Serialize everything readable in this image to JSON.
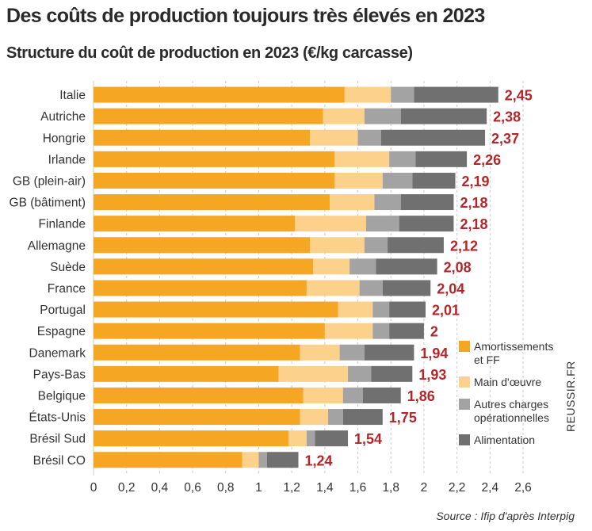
{
  "chart_data": {
    "type": "bar",
    "orientation": "horizontal",
    "stacked": true,
    "title": "Des coûts de production toujours très élevés en 2023",
    "subtitle": "Structure du coût de production en 2023 (€/kg carcasse)",
    "source": "Source : Ifip d'après Interpig",
    "watermark": "REUSSIR.FR",
    "categories": [
      "Italie",
      "Autriche",
      "Hongrie",
      "Irlande",
      "GB (plein-air)",
      "GB (bâtiment)",
      "Finlande",
      "Allemagne",
      "Suède",
      "France",
      "Portugal",
      "Espagne",
      "Danemark",
      "Pays-Bas",
      "Belgique",
      "États-Unis",
      "Brésil Sud",
      "Brésil CO"
    ],
    "totals": [
      "2,45",
      "2,38",
      "2,37",
      "2,26",
      "2,19",
      "2,18",
      "2,18",
      "2,12",
      "2,08",
      "2,04",
      "2,01",
      "2",
      "1,94",
      "1,93",
      "1,86",
      "1,75",
      "1,54",
      "1,24"
    ],
    "series": [
      {
        "name": "Amortissements et FF",
        "legend_lines": [
          "Amortissements",
          "et FF"
        ],
        "color": "#f5a623",
        "values": [
          1.52,
          1.39,
          1.31,
          1.46,
          1.46,
          1.43,
          1.22,
          1.31,
          1.33,
          1.29,
          1.48,
          1.4,
          1.25,
          1.12,
          1.27,
          1.25,
          1.18,
          0.9
        ]
      },
      {
        "name": "Main d'œuvre",
        "legend_lines": [
          "Main d'œuvre"
        ],
        "color": "#fbd18c",
        "values": [
          0.28,
          0.25,
          0.29,
          0.33,
          0.29,
          0.27,
          0.43,
          0.33,
          0.22,
          0.32,
          0.21,
          0.29,
          0.24,
          0.42,
          0.24,
          0.17,
          0.11,
          0.1
        ]
      },
      {
        "name": "Autres charges opérationnelles",
        "legend_lines": [
          "Autres charges",
          "opérationnelles"
        ],
        "color": "#a3a3a3",
        "values": [
          0.14,
          0.22,
          0.14,
          0.16,
          0.18,
          0.16,
          0.2,
          0.14,
          0.16,
          0.14,
          0.1,
          0.1,
          0.15,
          0.14,
          0.12,
          0.09,
          0.05,
          0.05
        ]
      },
      {
        "name": "Alimentation",
        "legend_lines": [
          "Alimentation"
        ],
        "color": "#707070",
        "values": [
          0.51,
          0.52,
          0.63,
          0.31,
          0.26,
          0.32,
          0.33,
          0.34,
          0.37,
          0.29,
          0.22,
          0.21,
          0.3,
          0.25,
          0.23,
          0.24,
          0.2,
          0.19
        ]
      }
    ],
    "xlim": [
      0,
      2.6
    ],
    "xticks": [
      0,
      0.2,
      0.4,
      0.6,
      0.8,
      1,
      1.2,
      1.4,
      1.6,
      1.8,
      2,
      2.2,
      2.4,
      2.6
    ],
    "xtick_labels": [
      "0",
      "0,2",
      "0,4",
      "0,6",
      "0,8",
      "1",
      "1,2",
      "1,4",
      "1,6",
      "1,8",
      "2",
      "2,2",
      "2,4",
      "2,6"
    ],
    "grid": true,
    "legend_position": "right"
  }
}
